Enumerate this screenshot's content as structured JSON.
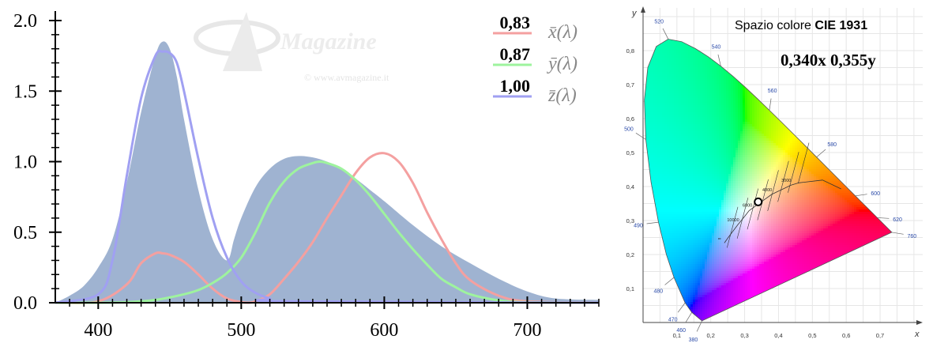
{
  "chart_data": [
    {
      "type": "line",
      "title": "",
      "xlabel": "",
      "ylabel": "",
      "xlim": [
        370,
        750
      ],
      "ylim": [
        0,
        2.0
      ],
      "x_ticks": [
        "400",
        "500",
        "600",
        "700"
      ],
      "y_ticks": [
        "0.0",
        "0.5",
        "1.0",
        "1.5",
        "2.0"
      ],
      "grid": false,
      "legend_position": "top-right",
      "area_series": {
        "name": "",
        "color": "#9fb3d1",
        "x": [
          370,
          380,
          390,
          400,
          410,
          420,
          430,
          440,
          445,
          450,
          455,
          460,
          470,
          480,
          490,
          495,
          500,
          510,
          520,
          530,
          540,
          550,
          560,
          570,
          580,
          590,
          600,
          620,
          640,
          660,
          680,
          700,
          720,
          750
        ],
        "y": [
          0.0,
          0.05,
          0.12,
          0.25,
          0.45,
          0.85,
          1.35,
          1.75,
          1.85,
          1.8,
          1.6,
          1.3,
          0.8,
          0.45,
          0.3,
          0.45,
          0.6,
          0.82,
          0.95,
          1.02,
          1.04,
          1.03,
          1.0,
          0.95,
          0.88,
          0.8,
          0.72,
          0.55,
          0.4,
          0.28,
          0.17,
          0.08,
          0.03,
          0.02
        ]
      },
      "series": [
        {
          "name": "x̄(λ)",
          "value_label": "0,83",
          "color": "#f4a0a0",
          "x": [
            370,
            400,
            420,
            430,
            440,
            445,
            450,
            460,
            470,
            480,
            490,
            500,
            505,
            510,
            520,
            530,
            540,
            550,
            560,
            570,
            580,
            590,
            600,
            610,
            620,
            630,
            640,
            650,
            660,
            680,
            700,
            750
          ],
          "y": [
            0.0,
            0.01,
            0.13,
            0.28,
            0.35,
            0.35,
            0.34,
            0.29,
            0.2,
            0.1,
            0.03,
            0.005,
            0.0,
            0.01,
            0.06,
            0.17,
            0.29,
            0.43,
            0.6,
            0.76,
            0.92,
            1.03,
            1.06,
            1.0,
            0.85,
            0.64,
            0.45,
            0.28,
            0.16,
            0.05,
            0.01,
            0.0
          ]
        },
        {
          "name": "ȳ(λ)",
          "value_label": "0,87",
          "color": "#9ef39e",
          "x": [
            370,
            400,
            420,
            440,
            460,
            470,
            480,
            490,
            500,
            510,
            520,
            530,
            540,
            550,
            555,
            560,
            570,
            580,
            590,
            600,
            610,
            620,
            630,
            640,
            650,
            660,
            680,
            700,
            750
          ],
          "y": [
            0.0,
            0.0,
            0.004,
            0.02,
            0.06,
            0.09,
            0.14,
            0.21,
            0.32,
            0.5,
            0.71,
            0.86,
            0.95,
            0.99,
            1.0,
            0.99,
            0.95,
            0.87,
            0.76,
            0.63,
            0.5,
            0.38,
            0.27,
            0.17,
            0.11,
            0.06,
            0.017,
            0.004,
            0.0
          ]
        },
        {
          "name": "z̄(λ)",
          "value_label": "1,00",
          "color": "#a0a0f2",
          "x": [
            370,
            400,
            410,
            420,
            430,
            440,
            445,
            450,
            455,
            460,
            470,
            480,
            490,
            500,
            510,
            520,
            530,
            750
          ],
          "y": [
            0.0,
            0.06,
            0.3,
            0.9,
            1.45,
            1.75,
            1.78,
            1.77,
            1.7,
            1.5,
            1.02,
            0.6,
            0.32,
            0.15,
            0.07,
            0.03,
            0.01,
            0.0
          ]
        }
      ]
    },
    {
      "type": "scatter",
      "title": "Spazio colore CIE 1931",
      "xlabel": "x",
      "ylabel": "y",
      "xlim": [
        0,
        0.8
      ],
      "ylim": [
        0,
        0.9
      ],
      "grid": true,
      "x_ticks": [
        "0,1",
        "0,2",
        "0,3",
        "0,4",
        "0,5",
        "0,6",
        "0,7"
      ],
      "y_ticks": [
        "0,1",
        "0,2",
        "0,3",
        "0,4",
        "0,5",
        "0,6",
        "0,7",
        "0,8"
      ],
      "white_point": {
        "x": 0.34,
        "y": 0.355,
        "label": "0,340x 0,355y"
      },
      "wavelength_labels": [
        {
          "label": "380",
          "x": 0.1741,
          "y": 0.005
        },
        {
          "label": "460",
          "x": 0.144,
          "y": 0.0297
        },
        {
          "label": "470",
          "x": 0.1241,
          "y": 0.0578
        },
        {
          "label": "480",
          "x": 0.0913,
          "y": 0.1327
        },
        {
          "label": "490",
          "x": 0.0454,
          "y": 0.295
        },
        {
          "label": "500",
          "x": 0.0082,
          "y": 0.5384
        },
        {
          "label": "520",
          "x": 0.0743,
          "y": 0.8338
        },
        {
          "label": "540",
          "x": 0.2296,
          "y": 0.7543
        },
        {
          "label": "560",
          "x": 0.3731,
          "y": 0.6245
        },
        {
          "label": "580",
          "x": 0.5125,
          "y": 0.4866
        },
        {
          "label": "600",
          "x": 0.627,
          "y": 0.3725
        },
        {
          "label": "620",
          "x": 0.6915,
          "y": 0.3083
        },
        {
          "label": "760",
          "x": 0.7347,
          "y": 0.2653
        }
      ],
      "locus": [
        [
          0.1741,
          0.005
        ],
        [
          0.144,
          0.0297
        ],
        [
          0.1241,
          0.0578
        ],
        [
          0.0913,
          0.1327
        ],
        [
          0.0687,
          0.2007
        ],
        [
          0.0454,
          0.295
        ],
        [
          0.0235,
          0.4127
        ],
        [
          0.0082,
          0.5384
        ],
        [
          0.0039,
          0.6548
        ],
        [
          0.0139,
          0.7502
        ],
        [
          0.0389,
          0.812
        ],
        [
          0.0743,
          0.8338
        ],
        [
          0.1142,
          0.8262
        ],
        [
          0.1547,
          0.8059
        ],
        [
          0.1929,
          0.7816
        ],
        [
          0.2296,
          0.7543
        ],
        [
          0.2658,
          0.7243
        ],
        [
          0.3016,
          0.6923
        ],
        [
          0.3373,
          0.6589
        ],
        [
          0.3731,
          0.6245
        ],
        [
          0.4087,
          0.5896
        ],
        [
          0.4441,
          0.5547
        ],
        [
          0.4788,
          0.5202
        ],
        [
          0.5125,
          0.4866
        ],
        [
          0.5448,
          0.4544
        ],
        [
          0.5752,
          0.4242
        ],
        [
          0.6029,
          0.3965
        ],
        [
          0.627,
          0.3725
        ],
        [
          0.6482,
          0.3514
        ],
        [
          0.6658,
          0.334
        ],
        [
          0.6915,
          0.3083
        ],
        [
          0.7347,
          0.2653
        ]
      ],
      "planckian_locus": [
        [
          0.24,
          0.234
        ],
        [
          0.253,
          0.252
        ],
        [
          0.28,
          0.288
        ],
        [
          0.3,
          0.312
        ],
        [
          0.313,
          0.329
        ],
        [
          0.345,
          0.352
        ],
        [
          0.38,
          0.377
        ],
        [
          0.437,
          0.404
        ],
        [
          0.46,
          0.411
        ],
        [
          0.53,
          0.419
        ],
        [
          0.585,
          0.393
        ]
      ],
      "temperature_labels": [
        {
          "label": "∞",
          "x": 0.24,
          "y": 0.234
        },
        {
          "label": "10000",
          "x": 0.28,
          "y": 0.288
        },
        {
          "label": "6000",
          "x": 0.3222,
          "y": 0.3318
        },
        {
          "label": "4000",
          "x": 0.3805,
          "y": 0.3768
        },
        {
          "label": "3000",
          "x": 0.4369,
          "y": 0.4041
        }
      ]
    }
  ],
  "watermark": {
    "brand": "Magazine",
    "copyright": "© www.avmagazine.it"
  }
}
